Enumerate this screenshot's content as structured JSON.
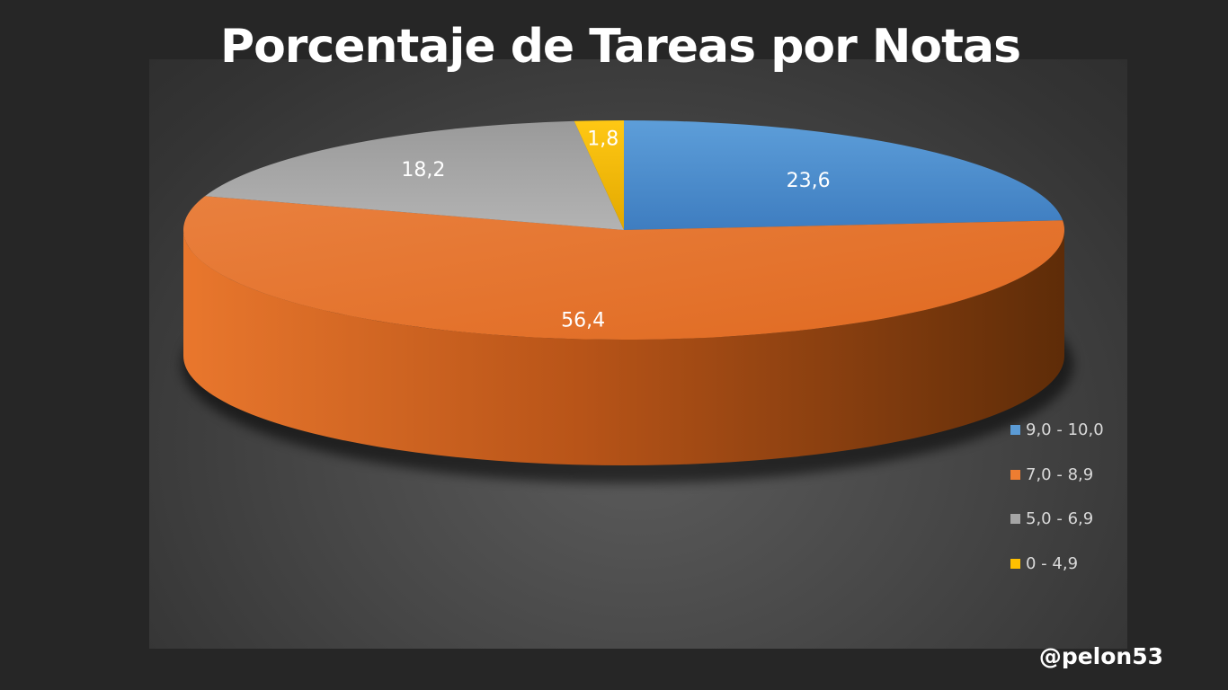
{
  "chart_data": {
    "type": "pie",
    "title": "Porcentaje de Tareas por Notas",
    "categories": [
      "9,0 - 10,0",
      "7,0 - 8,9",
      "5,0 - 6,9",
      "0 - 4,9"
    ],
    "values": [
      23.6,
      56.4,
      18.2,
      1.8
    ],
    "data_labels": [
      "23,6",
      "56,4",
      "18,2",
      "1,8"
    ],
    "colors": [
      "#5b9bd5",
      "#ed7d31",
      "#a5a5a5",
      "#ffc000"
    ],
    "legend_position": "right",
    "style": "3d"
  },
  "watermark": "@pelon53"
}
